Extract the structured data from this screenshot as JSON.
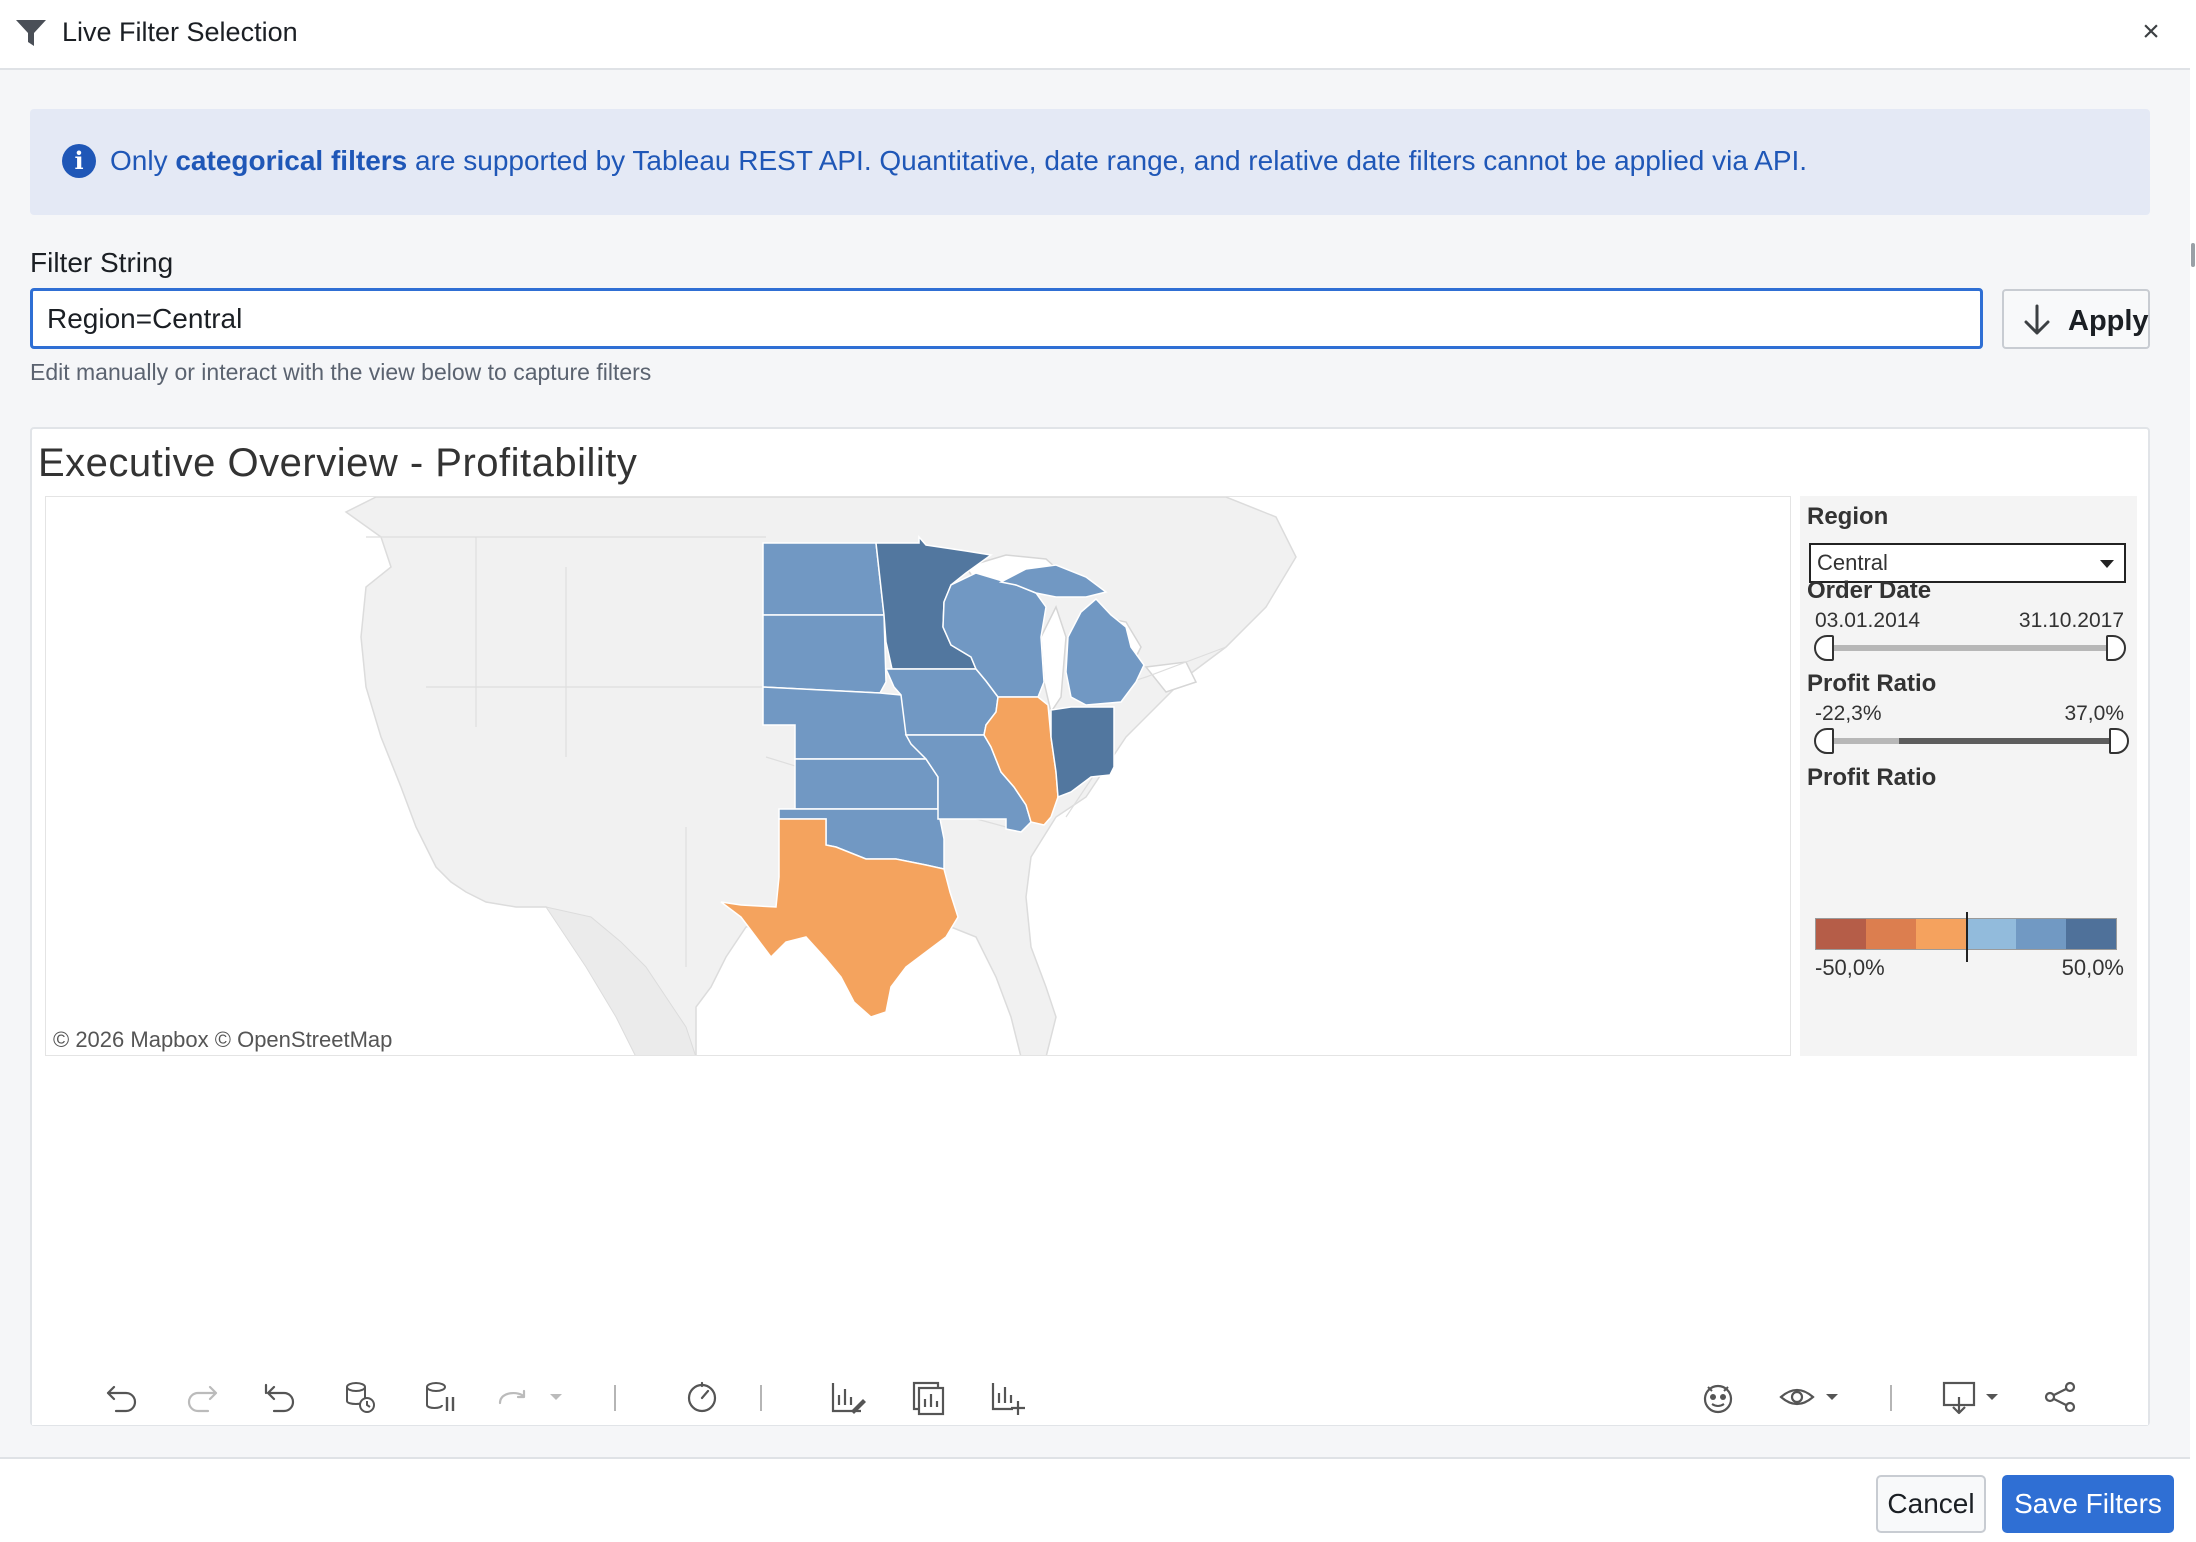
{
  "header": {
    "title": "Live Filter Selection",
    "close_label": "×",
    "icon": "funnel-icon"
  },
  "banner": {
    "icon": "info-icon",
    "prefix": "Only ",
    "bold": "categorical filters",
    "suffix": " are supported by Tableau REST API. Quantitative, date range, and relative date filters cannot be applied via API."
  },
  "filter": {
    "label": "Filter String",
    "value": "Region=Central",
    "apply_label": "Apply",
    "hint": "Edit manually or interact with the view below to capture filters"
  },
  "dashboard": {
    "title": "Executive Overview - Profitability",
    "attribution": "© 2026 Mapbox  © OpenStreetMap",
    "region": {
      "label": "Region",
      "selected": "Central"
    },
    "order_date": {
      "label": "Order Date",
      "start": "03.01.2014",
      "end": "31.10.2017"
    },
    "profit_ratio_filter": {
      "label": "Profit Ratio",
      "min": "-22,3%",
      "max": "37,0%",
      "low_fraction": 0.26,
      "high_fraction": 1.0
    },
    "profit_ratio_legend": {
      "label": "Profit Ratio",
      "min": "-50,0%",
      "max": "50,0%",
      "colors": [
        "#b55d48",
        "#dc7e4f",
        "#f5a25e",
        "#92bbdc",
        "#7199c3",
        "#4f719a"
      ]
    },
    "states": [
      {
        "name": "North Dakota",
        "color": "#7198c3"
      },
      {
        "name": "South Dakota",
        "color": "#7198c3"
      },
      {
        "name": "Nebraska",
        "color": "#7198c3"
      },
      {
        "name": "Kansas",
        "color": "#7198c3"
      },
      {
        "name": "Oklahoma",
        "color": "#7198c3"
      },
      {
        "name": "Texas",
        "color": "#f4a35e"
      },
      {
        "name": "Minnesota",
        "color": "#52779f"
      },
      {
        "name": "Iowa",
        "color": "#7198c3"
      },
      {
        "name": "Missouri",
        "color": "#7198c3"
      },
      {
        "name": "Wisconsin",
        "color": "#7198c3"
      },
      {
        "name": "Illinois",
        "color": "#f4a35e"
      },
      {
        "name": "Michigan",
        "color": "#7198c3"
      },
      {
        "name": "Indiana",
        "color": "#52779f"
      }
    ]
  },
  "toolbar": {
    "icons": [
      "undo-icon",
      "redo-icon",
      "revert-icon",
      "refresh-data-icon",
      "pause-updates-icon",
      "replay-icon",
      "pace-icon",
      "edit-view-icon",
      "view-data-icon",
      "add-metric-icon",
      "ask-data-icon",
      "watch-icon",
      "download-icon",
      "share-icon"
    ]
  },
  "footer": {
    "cancel_label": "Cancel",
    "save_label": "Save Filters"
  },
  "colors": {
    "accent": "#2f6fd4",
    "banner_text": "#1f57b7",
    "banner_bg": "#e4e9f5"
  }
}
